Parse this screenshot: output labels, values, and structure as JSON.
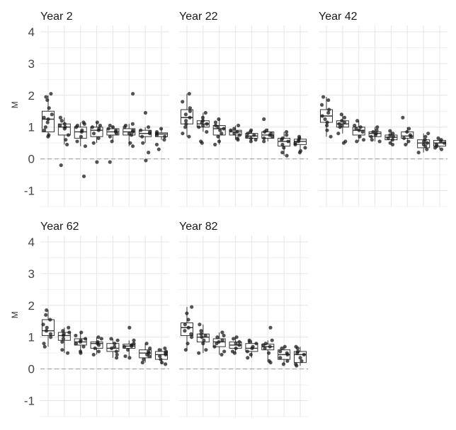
{
  "chart_data": {
    "type": "boxplot",
    "ylabel": "M",
    "ylim": [
      -1.5,
      4.2
    ],
    "yticks": [
      -1,
      0,
      1,
      2,
      3,
      4
    ],
    "reference_line": 0,
    "grid": true,
    "groups_per_facet": 8,
    "facets": [
      {
        "title": "Year 2",
        "boxes": [
          {
            "q1": 0.85,
            "median": 1.25,
            "q3": 1.5,
            "whisker_low": 0.7,
            "whisker_high": 2.0,
            "points": [
              0.7,
              0.75,
              0.9,
              1.0,
              1.15,
              1.25,
              1.3,
              1.4,
              1.6,
              1.85,
              1.95,
              2.05
            ]
          },
          {
            "q1": 0.75,
            "median": 1.0,
            "q3": 1.1,
            "whisker_low": 0.45,
            "whisker_high": 1.3,
            "points": [
              -0.2,
              0.45,
              0.6,
              0.75,
              0.95,
              1.0,
              1.05,
              1.1,
              1.2,
              1.3
            ]
          },
          {
            "q1": 0.65,
            "median": 0.85,
            "q3": 1.0,
            "whisker_low": 0.4,
            "whisker_high": 1.15,
            "points": [
              -0.55,
              0.4,
              0.55,
              0.7,
              0.85,
              0.9,
              1.0,
              1.05,
              1.1,
              1.15
            ]
          },
          {
            "q1": 0.7,
            "median": 0.9,
            "q3": 1.0,
            "whisker_low": 0.5,
            "whisker_high": 1.15,
            "points": [
              -0.1,
              0.5,
              0.65,
              0.8,
              0.9,
              0.95,
              1.0,
              1.05,
              1.15
            ]
          },
          {
            "q1": 0.75,
            "median": 0.85,
            "q3": 0.95,
            "whisker_low": 0.55,
            "whisker_high": 1.05,
            "points": [
              -0.1,
              0.55,
              0.7,
              0.8,
              0.85,
              0.9,
              0.95,
              1.0,
              1.05
            ]
          },
          {
            "q1": 0.75,
            "median": 0.85,
            "q3": 0.95,
            "whisker_low": 0.4,
            "whisker_high": 1.1,
            "points": [
              0.4,
              0.5,
              0.75,
              0.8,
              0.85,
              0.9,
              1.0,
              1.05,
              1.1,
              2.05
            ]
          },
          {
            "q1": 0.7,
            "median": 0.8,
            "q3": 0.9,
            "whisker_low": 0.5,
            "whisker_high": 1.0,
            "points": [
              -0.05,
              0.2,
              0.5,
              0.7,
              0.8,
              0.85,
              0.9,
              1.0,
              1.45
            ]
          },
          {
            "q1": 0.7,
            "median": 0.78,
            "q3": 0.82,
            "whisker_low": 0.6,
            "whisker_high": 0.95,
            "points": [
              0.3,
              0.45,
              0.6,
              0.7,
              0.75,
              0.8,
              0.85,
              0.95
            ]
          }
        ]
      },
      {
        "title": "Year 22",
        "boxes": [
          {
            "q1": 1.1,
            "median": 1.3,
            "q3": 1.55,
            "whisker_low": 0.7,
            "whisker_high": 2.05,
            "points": [
              0.7,
              0.8,
              1.0,
              1.1,
              1.2,
              1.3,
              1.4,
              1.5,
              1.6,
              1.8,
              2.05
            ]
          },
          {
            "q1": 1.0,
            "median": 1.1,
            "q3": 1.2,
            "whisker_low": 0.85,
            "whisker_high": 1.45,
            "points": [
              0.5,
              0.55,
              0.85,
              1.0,
              1.05,
              1.1,
              1.15,
              1.2,
              1.3,
              1.45
            ]
          },
          {
            "q1": 0.75,
            "median": 0.95,
            "q3": 1.05,
            "whisker_low": 0.45,
            "whisker_high": 1.25,
            "points": [
              0.45,
              0.55,
              0.7,
              0.8,
              0.9,
              0.95,
              1.0,
              1.05,
              1.15,
              1.25
            ]
          },
          {
            "q1": 0.75,
            "median": 0.85,
            "q3": 0.9,
            "whisker_low": 0.6,
            "whisker_high": 1.05,
            "points": [
              0.6,
              0.65,
              0.75,
              0.8,
              0.85,
              0.9,
              0.95,
              1.05
            ]
          },
          {
            "q1": 0.65,
            "median": 0.72,
            "q3": 0.8,
            "whisker_low": 0.55,
            "whisker_high": 0.9,
            "points": [
              0.55,
              0.6,
              0.65,
              0.7,
              0.75,
              0.8,
              0.85,
              0.9
            ]
          },
          {
            "q1": 0.65,
            "median": 0.75,
            "q3": 0.85,
            "whisker_low": 0.55,
            "whisker_high": 0.95,
            "points": [
              0.55,
              0.65,
              0.7,
              0.75,
              0.8,
              0.85,
              0.9,
              1.25
            ]
          },
          {
            "q1": 0.4,
            "median": 0.55,
            "q3": 0.65,
            "whisker_low": 0.1,
            "whisker_high": 0.85,
            "points": [
              0.1,
              0.2,
              0.35,
              0.45,
              0.55,
              0.6,
              0.65,
              0.75,
              0.85
            ]
          },
          {
            "q1": 0.45,
            "median": 0.55,
            "q3": 0.62,
            "whisker_low": 0.3,
            "whisker_high": 0.7,
            "points": [
              0.2,
              0.25,
              0.35,
              0.45,
              0.5,
              0.55,
              0.6,
              0.65,
              0.7
            ]
          }
        ]
      },
      {
        "title": "Year 42",
        "boxes": [
          {
            "q1": 1.15,
            "median": 1.35,
            "q3": 1.55,
            "whisker_low": 0.7,
            "whisker_high": 1.95,
            "points": [
              0.7,
              0.9,
              1.05,
              1.15,
              1.25,
              1.35,
              1.45,
              1.55,
              1.7,
              1.85,
              1.95
            ]
          },
          {
            "q1": 1.0,
            "median": 1.1,
            "q3": 1.2,
            "whisker_low": 0.8,
            "whisker_high": 1.4,
            "points": [
              0.5,
              0.55,
              0.8,
              1.0,
              1.05,
              1.1,
              1.15,
              1.2,
              1.3,
              1.4
            ]
          },
          {
            "q1": 0.75,
            "median": 0.9,
            "q3": 1.0,
            "whisker_low": 0.55,
            "whisker_high": 1.2,
            "points": [
              0.55,
              0.6,
              0.7,
              0.85,
              0.9,
              0.95,
              1.0,
              1.05,
              1.2
            ]
          },
          {
            "q1": 0.7,
            "median": 0.8,
            "q3": 0.85,
            "whisker_low": 0.55,
            "whisker_high": 1.0,
            "points": [
              0.55,
              0.6,
              0.7,
              0.75,
              0.8,
              0.85,
              0.9,
              1.0
            ]
          },
          {
            "q1": 0.6,
            "median": 0.68,
            "q3": 0.75,
            "whisker_low": 0.5,
            "whisker_high": 0.88,
            "points": [
              0.45,
              0.5,
              0.6,
              0.65,
              0.7,
              0.75,
              0.8,
              0.88
            ]
          },
          {
            "q1": 0.65,
            "median": 0.72,
            "q3": 0.85,
            "whisker_low": 0.45,
            "whisker_high": 1.0,
            "points": [
              0.45,
              0.55,
              0.65,
              0.7,
              0.75,
              0.85,
              0.95,
              1.3
            ]
          },
          {
            "q1": 0.35,
            "median": 0.5,
            "q3": 0.6,
            "whisker_low": 0.2,
            "whisker_high": 0.8,
            "points": [
              0.2,
              0.3,
              0.4,
              0.45,
              0.5,
              0.55,
              0.6,
              0.7,
              0.8
            ]
          },
          {
            "q1": 0.4,
            "median": 0.5,
            "q3": 0.58,
            "whisker_low": 0.3,
            "whisker_high": 0.65,
            "points": [
              0.3,
              0.35,
              0.4,
              0.45,
              0.5,
              0.55,
              0.6,
              0.65
            ]
          }
        ]
      },
      {
        "title": "Year 62",
        "boxes": [
          {
            "q1": 1.05,
            "median": 1.2,
            "q3": 1.55,
            "whisker_low": 0.7,
            "whisker_high": 1.85,
            "points": [
              0.7,
              0.8,
              1.0,
              1.1,
              1.2,
              1.3,
              1.4,
              1.55,
              1.7,
              1.85
            ]
          },
          {
            "q1": 0.9,
            "median": 1.05,
            "q3": 1.15,
            "whisker_low": 0.5,
            "whisker_high": 1.3,
            "points": [
              0.5,
              0.6,
              0.85,
              0.95,
              1.05,
              1.1,
              1.15,
              1.2,
              1.3
            ]
          },
          {
            "q1": 0.75,
            "median": 0.85,
            "q3": 0.95,
            "whisker_low": 0.5,
            "whisker_high": 1.15,
            "points": [
              0.5,
              0.55,
              0.7,
              0.8,
              0.85,
              0.9,
              0.95,
              1.05,
              1.15
            ]
          },
          {
            "q1": 0.65,
            "median": 0.8,
            "q3": 0.85,
            "whisker_low": 0.45,
            "whisker_high": 1.0,
            "points": [
              0.45,
              0.55,
              0.65,
              0.75,
              0.8,
              0.85,
              0.95,
              1.0
            ]
          },
          {
            "q1": 0.55,
            "median": 0.65,
            "q3": 0.8,
            "whisker_low": 0.35,
            "whisker_high": 0.95,
            "points": [
              0.35,
              0.45,
              0.55,
              0.65,
              0.7,
              0.8,
              0.9,
              0.95
            ]
          },
          {
            "q1": 0.65,
            "median": 0.72,
            "q3": 0.78,
            "whisker_low": 0.4,
            "whisker_high": 0.9,
            "points": [
              0.35,
              0.4,
              0.6,
              0.7,
              0.72,
              0.75,
              0.8,
              0.9,
              1.3
            ]
          },
          {
            "q1": 0.35,
            "median": 0.5,
            "q3": 0.6,
            "whisker_low": 0.2,
            "whisker_high": 0.8,
            "points": [
              0.2,
              0.3,
              0.4,
              0.45,
              0.5,
              0.55,
              0.65,
              0.8
            ]
          },
          {
            "q1": 0.3,
            "median": 0.45,
            "q3": 0.55,
            "whisker_low": 0.15,
            "whisker_high": 0.65,
            "points": [
              0.15,
              0.2,
              0.3,
              0.4,
              0.45,
              0.5,
              0.55,
              0.6,
              0.65
            ]
          }
        ]
      },
      {
        "title": "Year 82",
        "boxes": [
          {
            "q1": 1.05,
            "median": 1.3,
            "q3": 1.45,
            "whisker_low": 0.6,
            "whisker_high": 1.95,
            "points": [
              0.6,
              0.8,
              1.0,
              1.1,
              1.2,
              1.3,
              1.4,
              1.55,
              1.75,
              1.95
            ]
          },
          {
            "q1": 0.85,
            "median": 1.0,
            "q3": 1.1,
            "whisker_low": 0.5,
            "whisker_high": 1.4,
            "points": [
              0.5,
              0.6,
              0.8,
              0.9,
              1.0,
              1.05,
              1.1,
              1.2,
              1.4
            ]
          },
          {
            "q1": 0.7,
            "median": 0.85,
            "q3": 0.95,
            "whisker_low": 0.45,
            "whisker_high": 1.15,
            "points": [
              0.45,
              0.55,
              0.7,
              0.8,
              0.85,
              0.9,
              1.0,
              1.05,
              1.15
            ]
          },
          {
            "q1": 0.65,
            "median": 0.75,
            "q3": 0.85,
            "whisker_low": 0.5,
            "whisker_high": 1.0,
            "points": [
              0.5,
              0.55,
              0.65,
              0.75,
              0.8,
              0.85,
              0.95,
              1.0
            ]
          },
          {
            "q1": 0.55,
            "median": 0.65,
            "q3": 0.8,
            "whisker_low": 0.35,
            "whisker_high": 0.9,
            "points": [
              0.35,
              0.45,
              0.55,
              0.65,
              0.7,
              0.8,
              0.85,
              0.9
            ]
          },
          {
            "q1": 0.6,
            "median": 0.7,
            "q3": 0.78,
            "whisker_low": 0.25,
            "whisker_high": 0.9,
            "points": [
              0.2,
              0.25,
              0.5,
              0.65,
              0.7,
              0.75,
              0.8,
              0.9,
              1.3
            ]
          },
          {
            "q1": 0.3,
            "median": 0.45,
            "q3": 0.6,
            "whisker_low": 0.15,
            "whisker_high": 0.7,
            "points": [
              0.15,
              0.25,
              0.35,
              0.45,
              0.5,
              0.55,
              0.65,
              0.7
            ]
          },
          {
            "q1": 0.2,
            "median": 0.45,
            "q3": 0.55,
            "whisker_low": 0.1,
            "whisker_high": 0.7,
            "points": [
              0.1,
              0.15,
              0.25,
              0.35,
              0.45,
              0.5,
              0.55,
              0.65,
              0.7
            ]
          }
        ]
      }
    ]
  }
}
